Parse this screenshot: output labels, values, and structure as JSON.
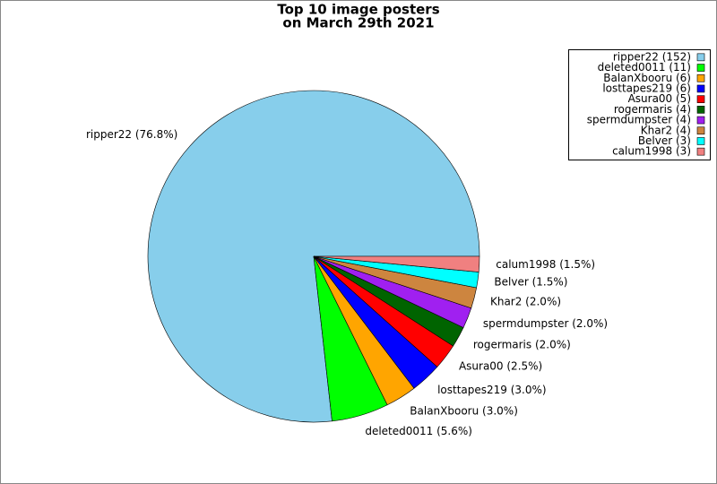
{
  "chart_data": {
    "type": "pie",
    "title": [
      "Top 10 image posters",
      "on March 29th 2021"
    ],
    "values": [
      152,
      11,
      6,
      6,
      5,
      4,
      4,
      4,
      3,
      3
    ],
    "value_labels": [
      "ripper22 (76.8%)",
      "deleted0011 (5.6%)",
      "BalanXbooru (3.0%)",
      "losttapes219 (3.0%)",
      "Asura00 (2.5%)",
      "rogermaris (2.0%)",
      "spermdumpster (2.0%)",
      "Khar2 (2.0%)",
      "Belver (1.5%)",
      "calum1998 (1.5%)"
    ],
    "legend_labels": [
      "ripper22 (152)",
      "deleted0011 (11)",
      "BalanXbooru (6)",
      "losttapes219 (6)",
      "Asura00 (5)",
      "rogermaris (4)",
      "spermdumpster (4)",
      "Khar2 (4)",
      "Belver (3)",
      "calum1998 (3)"
    ],
    "colors": [
      "#87ceeb",
      "#00ff00",
      "#ffa500",
      "#0000ff",
      "#ff0000",
      "#006400",
      "#a020f0",
      "#cd853f",
      "#00ffff",
      "#f08080"
    ],
    "legend": "upper right"
  }
}
